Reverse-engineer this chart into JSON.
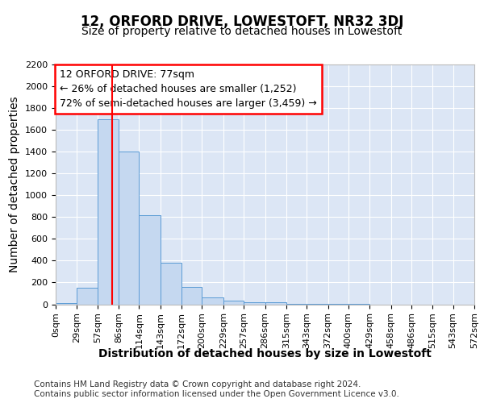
{
  "title": "12, ORFORD DRIVE, LOWESTOFT, NR32 3DJ",
  "subtitle": "Size of property relative to detached houses in Lowestoft",
  "xlabel": "Distribution of detached houses by size in Lowestoft",
  "ylabel": "Number of detached properties",
  "footer_line1": "Contains HM Land Registry data © Crown copyright and database right 2024.",
  "footer_line2": "Contains public sector information licensed under the Open Government Licence v3.0.",
  "annotation_line1": "12 ORFORD DRIVE: 77sqm",
  "annotation_line2": "← 26% of detached houses are smaller (1,252)",
  "annotation_line3": "72% of semi-detached houses are larger (3,459) →",
  "bar_color": "#c5d8f0",
  "bar_edge_color": "#5b9bd5",
  "red_line_x": 77,
  "ylim": [
    0,
    2200
  ],
  "bin_edges": [
    0,
    29,
    57,
    86,
    114,
    143,
    172,
    200,
    229,
    257,
    286,
    315,
    343,
    372,
    400,
    429,
    458,
    486,
    515,
    543,
    572
  ],
  "bar_heights": [
    10,
    150,
    1700,
    1400,
    820,
    380,
    160,
    60,
    30,
    20,
    20,
    5,
    2,
    1,
    1,
    0,
    0,
    0,
    0,
    0
  ],
  "background_color": "#ffffff",
  "plot_bg_color": "#dce6f5",
  "grid_color": "#ffffff",
  "title_fontsize": 12,
  "subtitle_fontsize": 10,
  "axis_label_fontsize": 10,
  "tick_fontsize": 8,
  "annotation_fontsize": 9,
  "footer_fontsize": 7.5,
  "yticks": [
    0,
    200,
    400,
    600,
    800,
    1000,
    1200,
    1400,
    1600,
    1800,
    2000,
    2200
  ]
}
